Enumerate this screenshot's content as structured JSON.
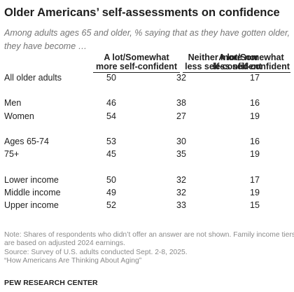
{
  "title": "Older Americans’ self-assessments on confidence",
  "subtitle": "Among adults ages 65 and older, % saying that as they have gotten older, they have become …",
  "chart_data": {
    "type": "table",
    "columns": [
      {
        "line1": "A lot/Somewhat",
        "line2": "more self-confident"
      },
      {
        "line1": "Neither more nor",
        "line2": "less self-confident"
      },
      {
        "line1": "A lot/Somewhat",
        "line2": "less self-confident"
      }
    ],
    "rows": [
      {
        "label": "All older adults",
        "values": [
          50,
          32,
          17
        ]
      },
      {
        "label": "Men",
        "values": [
          46,
          38,
          16
        ]
      },
      {
        "label": "Women",
        "values": [
          54,
          27,
          19
        ]
      },
      {
        "label": "Ages 65-74",
        "values": [
          53,
          30,
          16
        ]
      },
      {
        "label": "75+",
        "values": [
          45,
          35,
          19
        ]
      },
      {
        "label": "Lower income",
        "values": [
          50,
          32,
          17
        ]
      },
      {
        "label": "Middle income",
        "values": [
          49,
          32,
          19
        ]
      },
      {
        "label": "Upper income",
        "values": [
          52,
          33,
          15
        ]
      }
    ]
  },
  "notes": {
    "note_line1": "Note: Shares of respondents who didn’t offer an answer are not shown. Family income tiers",
    "note_line2": "are based on adjusted 2024 earnings.",
    "source": "Source: Survey of U.S. adults conducted Sept. 2-8, 2025.",
    "report": "“How Americans Are Thinking About Aging”"
  },
  "org": "PEW RESEARCH CENTER"
}
